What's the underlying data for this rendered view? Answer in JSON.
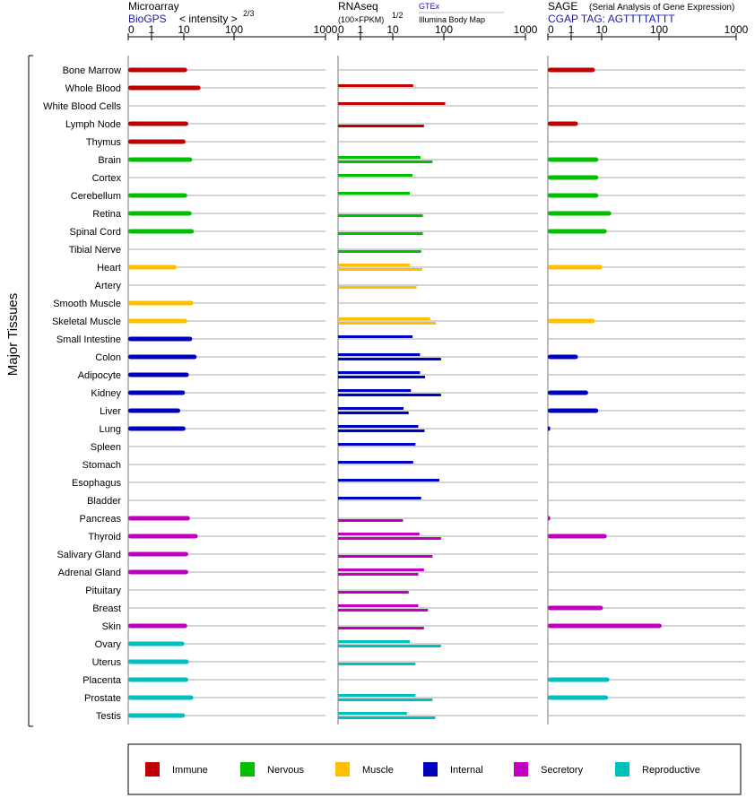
{
  "header": {
    "microarray_title": "Microarray",
    "microarray_source": "BioGPS",
    "microarray_scale": "< intensity >",
    "microarray_exp": "2/3",
    "rnaseq_title": "RNAseq",
    "rnaseq_unit": "(100×FPKM)",
    "rnaseq_exp": "1/2",
    "rnaseq_source1": "GTEx",
    "rnaseq_source2": "Illumina Body Map",
    "sage_title": "SAGE",
    "sage_subtitle": "(Serial Analysis of Gene Expression)",
    "sage_tag": "CGAP TAG: AGTTTTATTT"
  },
  "axis_ticks": [
    "0",
    "1",
    "10",
    "100",
    "1000"
  ],
  "y_title": "Major Tissues",
  "colors": {
    "Immune": "#bf0000",
    "Nervous": "#00bf00",
    "Muscle": "#ffbf00",
    "Internal": "#0000bf",
    "Secretory": "#bf00bf",
    "Reproductive": "#00bfbf"
  },
  "legend": [
    {
      "label": "Immune",
      "color": "#bf0000"
    },
    {
      "label": "Nervous",
      "color": "#00bf00"
    },
    {
      "label": "Muscle",
      "color": "#ffbf00"
    },
    {
      "label": "Internal",
      "color": "#0000bf"
    },
    {
      "label": "Secretory",
      "color": "#bf00bf"
    },
    {
      "label": "Reproductive",
      "color": "#00bfbf"
    }
  ],
  "chart_data": {
    "type": "bar",
    "x_scale": "power-compressed (ticks 0, 1, 10, 100, 1000)",
    "xlim": [
      0,
      1000
    ],
    "grid": true,
    "legend_position": "bottom",
    "categories": [
      "Bone Marrow",
      "Whole Blood",
      "White Blood Cells",
      "Lymph Node",
      "Thymus",
      "Brain",
      "Cortex",
      "Cerebellum",
      "Retina",
      "Spinal Cord",
      "Tibial Nerve",
      "Heart",
      "Artery",
      "Smooth Muscle",
      "Skeletal Muscle",
      "Small Intestine",
      "Colon",
      "Adipocyte",
      "Kidney",
      "Liver",
      "Lung",
      "Spleen",
      "Stomach",
      "Esophagus",
      "Bladder",
      "Pancreas",
      "Thyroid",
      "Salivary Gland",
      "Adrenal Gland",
      "Pituitary",
      "Breast",
      "Skin",
      "Ovary",
      "Uterus",
      "Placenta",
      "Prostate",
      "Testis"
    ],
    "groups": [
      "Immune",
      "Immune",
      "Immune",
      "Immune",
      "Immune",
      "Nervous",
      "Nervous",
      "Nervous",
      "Nervous",
      "Nervous",
      "Nervous",
      "Muscle",
      "Muscle",
      "Muscle",
      "Muscle",
      "Internal",
      "Internal",
      "Internal",
      "Internal",
      "Internal",
      "Internal",
      "Internal",
      "Internal",
      "Internal",
      "Internal",
      "Secretory",
      "Secretory",
      "Secretory",
      "Secretory",
      "Secretory",
      "Secretory",
      "Secretory",
      "Reproductive",
      "Reproductive",
      "Reproductive",
      "Reproductive",
      "Reproductive"
    ],
    "series": [
      {
        "name": "Microarray",
        "values": [
          16,
          40,
          null,
          18,
          13,
          25,
          null,
          16,
          24,
          28,
          null,
          8,
          null,
          27,
          16,
          25,
          33,
          19,
          12,
          9,
          13,
          null,
          null,
          null,
          null,
          21,
          35,
          18,
          18,
          null,
          null,
          16,
          11,
          19,
          18,
          27,
          12
        ]
      },
      {
        "name": "GTEx",
        "values": [
          null,
          null,
          null,
          null,
          null,
          50,
          42,
          null,
          null,
          null,
          null,
          null,
          null,
          null,
          72,
          null,
          null,
          null,
          null,
          null,
          null,
          null,
          null,
          null,
          null,
          null,
          null,
          null,
          null,
          null,
          52,
          null,
          null,
          null,
          null,
          null,
          null
        ]
      },
      {
        "name": "Illumina Body Map",
        "values": [
          null,
          null,
          null,
          null,
          null,
          null,
          null,
          null,
          null,
          null,
          null,
          null,
          null,
          null,
          null,
          null,
          null,
          null,
          null,
          null,
          null,
          null,
          null,
          null,
          null,
          null,
          null,
          null,
          null,
          null,
          null,
          null,
          null,
          null,
          null,
          null,
          null
        ]
      }
    ],
    "rnaseq_pairs": [
      [
        null,
        null
      ],
      [
        46,
        null
      ],
      [
        115,
        null
      ],
      [
        null,
        65
      ],
      [
        null,
        null
      ],
      [
        59,
        80
      ],
      [
        45,
        null
      ],
      [
        40,
        null
      ],
      [
        null,
        63
      ],
      [
        null,
        63
      ],
      [
        null,
        60
      ],
      [
        40,
        62
      ],
      [
        null,
        52
      ],
      [
        null,
        null
      ],
      [
        76,
        86
      ],
      [
        45,
        null
      ],
      [
        58,
        95
      ],
      [
        58,
        67
      ],
      [
        42,
        95
      ],
      [
        29,
        38
      ],
      [
        55,
        66
      ],
      [
        50,
        null
      ],
      [
        46,
        null
      ],
      [
        92,
        null
      ],
      [
        60,
        null
      ],
      [
        null,
        28
      ],
      [
        57,
        95
      ],
      [
        null,
        80
      ],
      [
        65,
        55
      ],
      [
        null,
        38
      ],
      [
        55,
        72
      ],
      [
        null,
        65
      ],
      [
        40,
        95
      ],
      [
        null,
        50
      ],
      [
        null,
        null
      ],
      [
        50,
        80
      ],
      [
        35,
        85
      ]
    ],
    "sage_values": [
      8,
      null,
      null,
      3,
      null,
      9,
      9,
      9,
      25,
      18,
      null,
      11,
      null,
      null,
      8,
      null,
      3,
      null,
      6,
      9,
      0.1,
      null,
      null,
      null,
      null,
      0.1,
      18,
      null,
      null,
      null,
      12,
      130,
      null,
      null,
      22,
      20,
      null
    ]
  }
}
